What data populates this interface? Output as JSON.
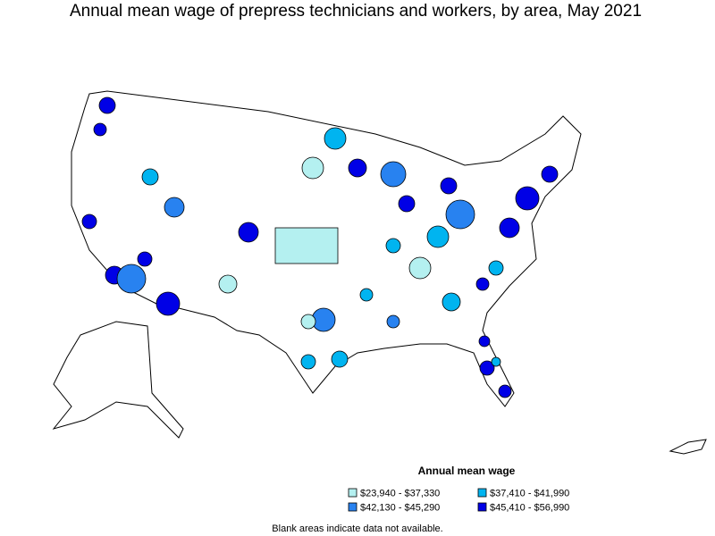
{
  "title": "Annual mean wage of prepress technicians and workers, by area, May 2021",
  "legend": {
    "title": "Annual mean wage",
    "items": [
      {
        "label": "$23,940 - $37,330",
        "color": "#b4f0f0"
      },
      {
        "label": "$37,410 - $41,990",
        "color": "#00b4f0"
      },
      {
        "label": "$42,130 - $45,290",
        "color": "#2882f0"
      },
      {
        "label": "$45,410 - $56,990",
        "color": "#0000e6"
      }
    ]
  },
  "note": "Blank areas indicate data not available."
}
